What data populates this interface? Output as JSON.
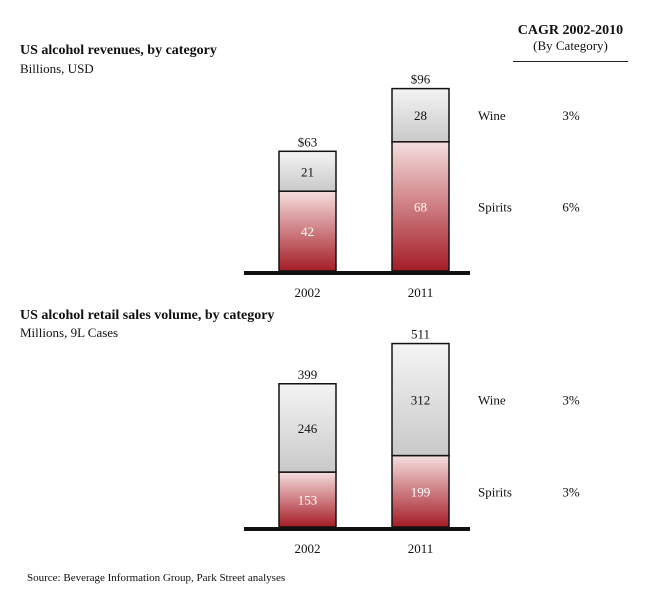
{
  "cagr": {
    "title": "CAGR 2002-2010",
    "subtitle": "(By Category)"
  },
  "source": "Source: Beverage Information Group, Park Street analyses",
  "colors": {
    "wine_top": "#f4f4f4",
    "wine_bottom": "#c9c9c9",
    "spirits_top": "#f5dede",
    "spirits_bottom": "#a51c26",
    "axis": "#111111"
  },
  "chart_data": [
    {
      "type": "bar",
      "title": "US alcohol revenues, by category",
      "subtitle": "Billions, USD",
      "categories": [
        "2002",
        "2011"
      ],
      "series": [
        {
          "name": "Spirits",
          "values": [
            42,
            68
          ],
          "cagr": "6%"
        },
        {
          "name": "Wine",
          "values": [
            21,
            28
          ],
          "cagr": "3%"
        }
      ],
      "totals": [
        "$63",
        "$96"
      ]
    },
    {
      "type": "bar",
      "title": "US alcohol retail sales volume, by category",
      "subtitle": "Millions, 9L Cases",
      "categories": [
        "2002",
        "2011"
      ],
      "series": [
        {
          "name": "Spirits",
          "values": [
            153,
            199
          ],
          "cagr": "3%"
        },
        {
          "name": "Wine",
          "values": [
            246,
            312
          ],
          "cagr": "3%"
        }
      ],
      "totals": [
        "399",
        "511"
      ]
    }
  ]
}
